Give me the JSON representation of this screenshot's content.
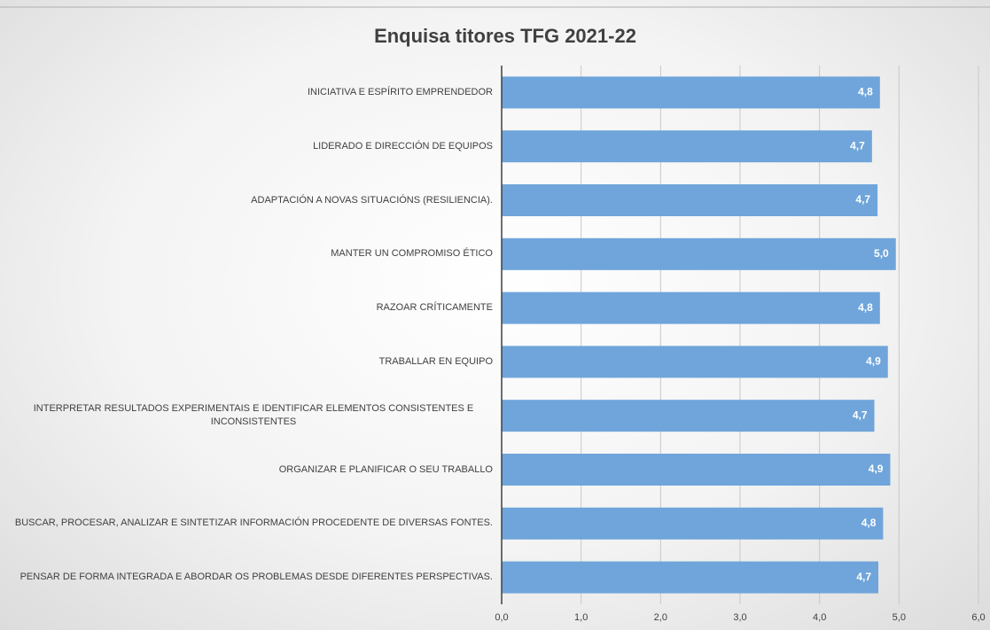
{
  "chart_data": {
    "type": "bar",
    "orientation": "horizontal",
    "title": "Enquisa titores TFG 2021-22",
    "categories": [
      "INICIATIVA E ESPÍRITO EMPRENDEDOR",
      "LIDERADO E DIRECCIÓN DE EQUIPOS",
      "ADAPTACIÓN A NOVAS SITUACIÓNS (RESILIENCIA).",
      "MANTER UN COMPROMISO ÉTICO",
      "RAZOAR CRÍTICAMENTE",
      "TRABALLAR EN EQUIPO",
      "INTERPRETAR RESULTADOS EXPERIMENTAIS E IDENTIFICAR ELEMENTOS CONSISTENTES E INCONSISTENTES",
      "ORGANIZAR E PLANIFICAR O SEU TRABALLO",
      "BUSCAR, PROCESAR, ANALIZAR E SINTETIZAR INFORMACIÓN PROCEDENTE DE DIVERSAS FONTES.",
      "PENSAR DE FORMA INTEGRADA E ABORDAR OS PROBLEMAS DESDE DIFERENTES PERSPECTIVAS."
    ],
    "values": [
      4.76,
      4.66,
      4.73,
      4.96,
      4.76,
      4.86,
      4.69,
      4.89,
      4.8,
      4.74
    ],
    "value_labels": [
      "4,8",
      "4,7",
      "4,7",
      "5,0",
      "4,8",
      "4,9",
      "4,7",
      "4,9",
      "4,8",
      "4,7"
    ],
    "color": "#6fa5da",
    "xlim": [
      0,
      6
    ],
    "xticks": [
      {
        "value": 0,
        "label": "0,0"
      },
      {
        "value": 1,
        "label": "1,0"
      },
      {
        "value": 2,
        "label": "2,0"
      },
      {
        "value": 3,
        "label": "3,0"
      },
      {
        "value": 4,
        "label": "4,0"
      },
      {
        "value": 5,
        "label": "5,0"
      },
      {
        "value": 6,
        "label": "6,0"
      }
    ],
    "grid": true
  }
}
